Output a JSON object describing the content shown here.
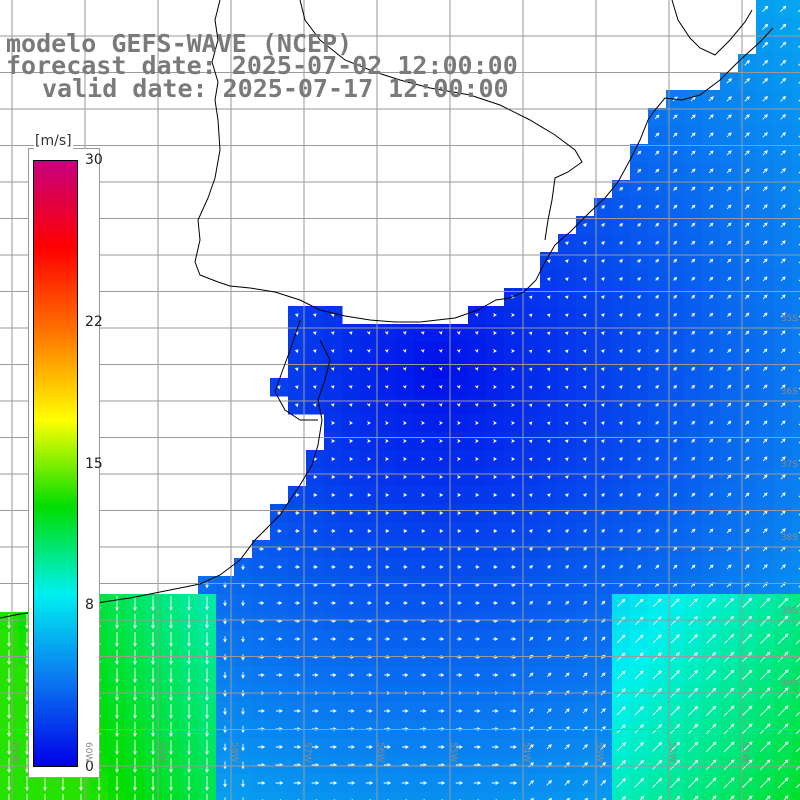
{
  "titles": {
    "model": "modelo GEFS-WAVE (NCEP)",
    "forecast": "forecast date: 2025-07-02 12:00:00",
    "valid": "valid date: 2025-07-17 12:00:00"
  },
  "colorbar": {
    "unit": "[m/s]",
    "min": 0,
    "max": 30,
    "ticks": [
      "0",
      "8",
      "15",
      "22",
      "30"
    ],
    "colors": [
      "#0000e8",
      "#0a78f0",
      "#00f0f0",
      "#00dd00",
      "#ffff00",
      "#ff7700",
      "#ff0000",
      "#c80080"
    ]
  },
  "grid_labels": {
    "lat": [
      "35S",
      "36S",
      "37S",
      "38S",
      "39S",
      "40S"
    ],
    "lon": [
      "61W",
      "60W",
      "59W",
      "58W",
      "57W",
      "56W",
      "55W",
      "54W",
      "53W",
      "52W",
      "51W"
    ]
  },
  "map": {
    "land_color": "#ffffff",
    "coast_color": "#000000",
    "grid_color": "#9a9a9a",
    "arrow_color": "#ffffff",
    "field": "wind speed with direction arrows"
  }
}
